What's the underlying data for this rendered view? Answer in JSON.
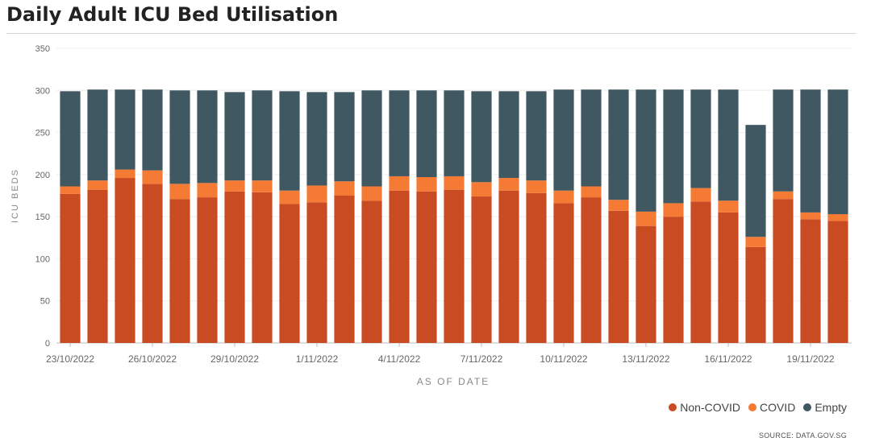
{
  "title": "Daily Adult ICU Bed Utilisation",
  "source": "SOURCE: DATA.GOV.SG",
  "colors": {
    "noncovid": "#c84b22",
    "covid": "#f57a34",
    "empty": "#405861",
    "grid": "#eeeeee",
    "axis": "#666666"
  },
  "legend": [
    {
      "label": "Non-COVID",
      "color": "#c84b22"
    },
    {
      "label": "COVID",
      "color": "#f57a34"
    },
    {
      "label": "Empty",
      "color": "#405861"
    }
  ],
  "chart_data": {
    "type": "bar",
    "stacked": true,
    "title": "Daily Adult ICU Bed Utilisation",
    "xlabel": "AS OF DATE",
    "ylabel": "ICU BEDS",
    "ylim": [
      0,
      350
    ],
    "yticks": [
      0,
      50,
      100,
      150,
      200,
      250,
      300,
      350
    ],
    "categories": [
      "23/10/2022",
      "24/10/2022",
      "25/10/2022",
      "26/10/2022",
      "27/10/2022",
      "28/10/2022",
      "29/10/2022",
      "30/10/2022",
      "31/10/2022",
      "1/11/2022",
      "2/11/2022",
      "3/11/2022",
      "4/11/2022",
      "5/11/2022",
      "6/11/2022",
      "7/11/2022",
      "8/11/2022",
      "9/11/2022",
      "10/11/2022",
      "11/11/2022",
      "12/11/2022",
      "13/11/2022",
      "14/11/2022",
      "15/11/2022",
      "16/11/2022",
      "17/11/2022",
      "18/11/2022",
      "19/11/2022",
      "20/11/2022"
    ],
    "xtick_labels": [
      "23/10/2022",
      "",
      "",
      "26/10/2022",
      "",
      "",
      "29/10/2022",
      "",
      "",
      "1/11/2022",
      "",
      "",
      "4/11/2022",
      "",
      "",
      "7/11/2022",
      "",
      "",
      "10/11/2022",
      "",
      "",
      "13/11/2022",
      "",
      "",
      "16/11/2022",
      "",
      "",
      "19/11/2022",
      ""
    ],
    "series": [
      {
        "name": "Non-COVID",
        "values": [
          177,
          182,
          196,
          189,
          171,
          173,
          180,
          179,
          165,
          167,
          175,
          169,
          181,
          180,
          182,
          174,
          181,
          178,
          166,
          173,
          157,
          139,
          150,
          168,
          155,
          114,
          171,
          147,
          145
        ]
      },
      {
        "name": "COVID",
        "values": [
          9,
          11,
          10,
          16,
          18,
          17,
          13,
          14,
          16,
          20,
          17,
          17,
          17,
          17,
          16,
          17,
          15,
          15,
          15,
          13,
          13,
          17,
          16,
          16,
          14,
          12,
          9,
          8,
          8
        ]
      },
      {
        "name": "Empty",
        "values": [
          113,
          108,
          95,
          96,
          111,
          110,
          105,
          107,
          118,
          111,
          106,
          114,
          102,
          103,
          102,
          108,
          103,
          106,
          120,
          115,
          131,
          145,
          135,
          117,
          132,
          133,
          121,
          146,
          148
        ]
      }
    ]
  }
}
